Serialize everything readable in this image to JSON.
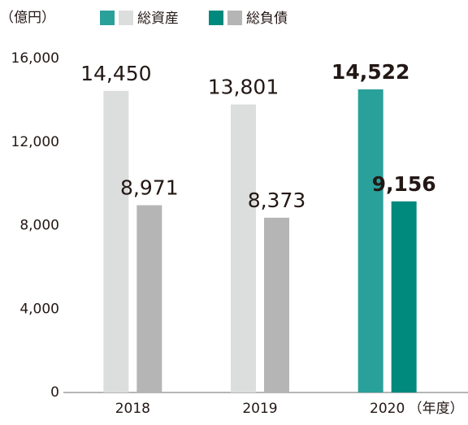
{
  "chart_data": {
    "type": "bar",
    "y_label": "（億円）",
    "x_label": "（年度）",
    "categories": [
      "2018",
      "2019",
      "2020"
    ],
    "series": [
      {
        "name": "総資産",
        "colors": [
          "#dcdddd",
          "#dcdddd",
          "#2aa09a"
        ],
        "values": [
          14450,
          13801,
          14522
        ],
        "value_labels": [
          "14,450",
          "13,801",
          "14,522"
        ]
      },
      {
        "name": "総負債",
        "colors": [
          "#b5b5b6",
          "#b5b5b6",
          "#00897d"
        ],
        "values": [
          8971,
          8373,
          9156
        ],
        "value_labels": [
          "8,971",
          "8,373",
          "9,156"
        ]
      }
    ],
    "value_label_bold": [
      false,
      false,
      true
    ],
    "ylim": [
      0,
      16000
    ],
    "yticks": [
      0,
      {
        "value": 4000,
        "label": "4,000"
      },
      {
        "value": 8000,
        "label": "8,000"
      },
      {
        "value": 12000,
        "label": "12,000"
      },
      {
        "value": 16000,
        "label": "16,000"
      }
    ],
    "grid": false
  }
}
